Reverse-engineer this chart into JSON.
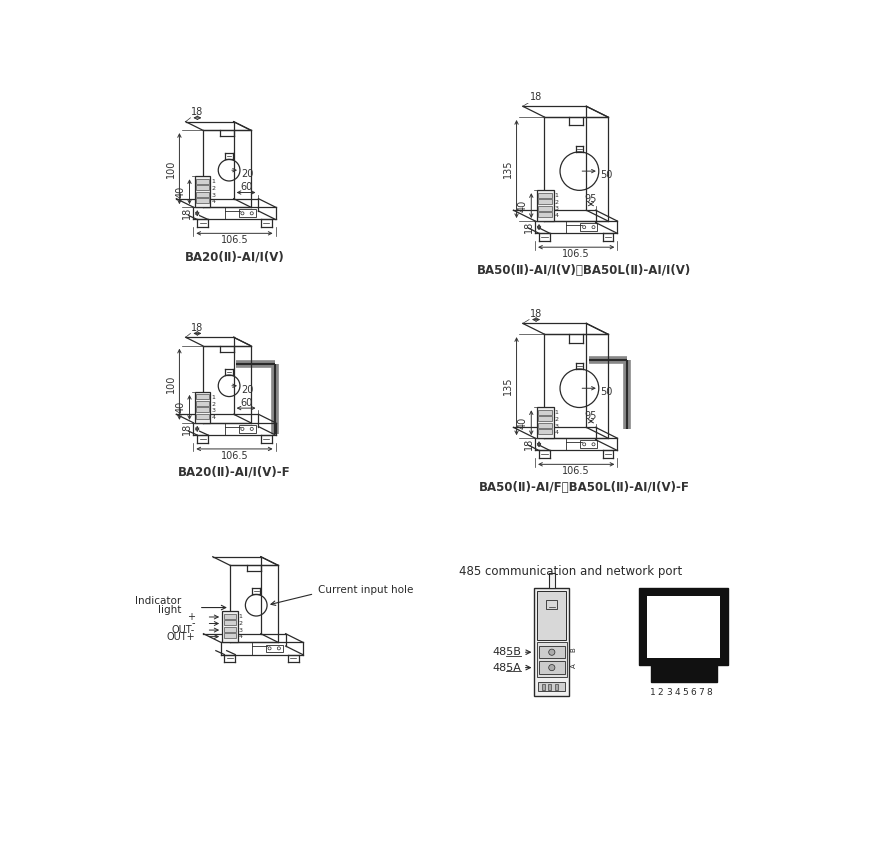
{
  "bg_color": "#ffffff",
  "line_color": "#2a2a2a",
  "dim_color": "#333333",
  "label_color": "#333333",
  "title_font_size": 8.5,
  "dim_font_size": 7,
  "diagrams": [
    {
      "label": "BA20(Ⅱ)-AI/I(V)",
      "large": false,
      "cable": false
    },
    {
      "label": "BA50(Ⅱ)-AI/I(V)、BA50L(Ⅱ)-AI/I(V)",
      "large": true,
      "cable": false
    },
    {
      "label": "BA20(Ⅱ)-AI/I(V)-F",
      "large": false,
      "cable": true
    },
    {
      "label": "BA50(Ⅱ)-AI/F、BA50L(Ⅱ)-AI/I(V)-F",
      "large": true,
      "cable": true
    }
  ],
  "bottom_pins": [
    "+",
    "-",
    "OUT-",
    "OUT+"
  ],
  "comm_label": "485 communication and network port",
  "comm_pins_top": "485B",
  "comm_pins_bot": "485A",
  "rj45_pin_label": "1 2 3 4 5 6 7 8"
}
